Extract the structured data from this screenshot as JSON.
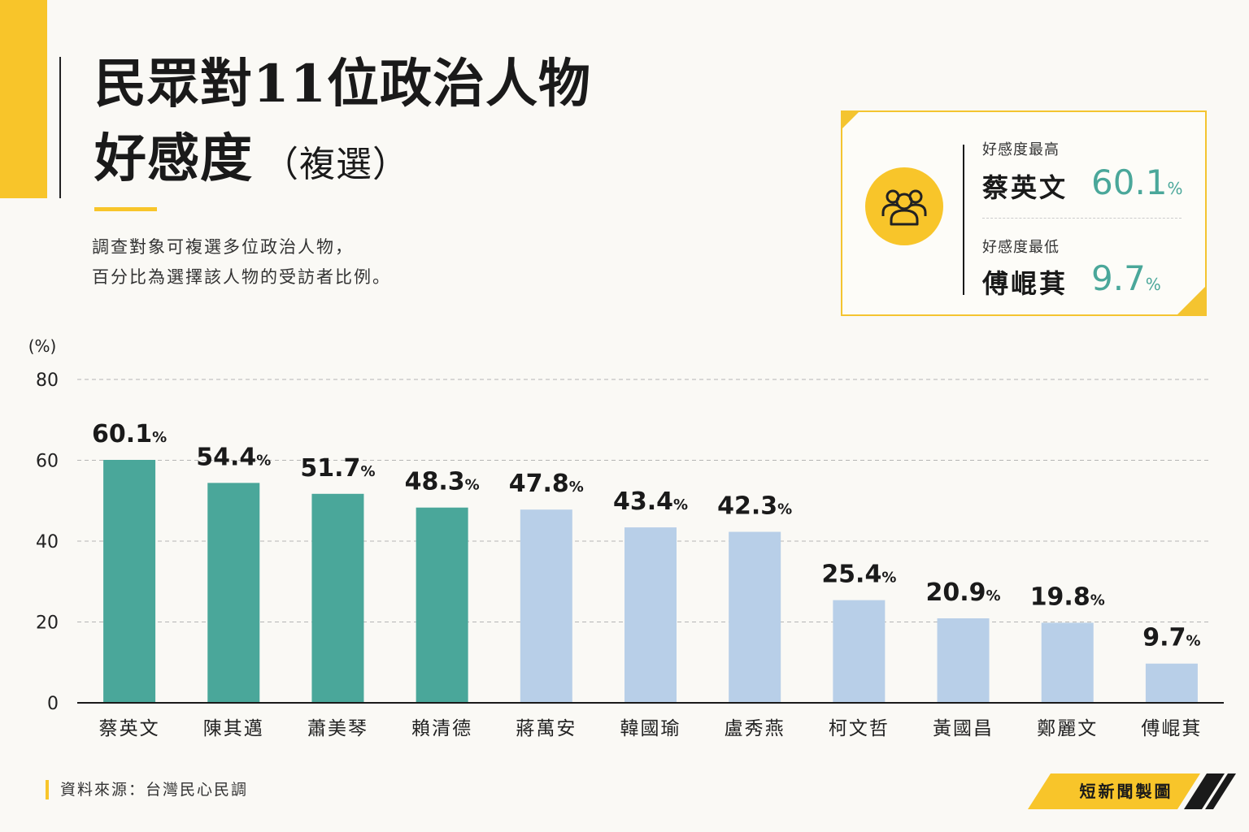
{
  "title_line1": "民眾對11位政治人物",
  "title_line2": "好感度",
  "title_paren": "（複選）",
  "note_line1": "調查對象可複選多位政治人物，",
  "note_line2": "百分比為選擇該人物的受訪者比例。",
  "callout": {
    "icon": "people-group-icon",
    "high_label": "好感度最高",
    "high_name": "蔡英文",
    "high_value": "60.1",
    "low_label": "好感度最低",
    "low_name": "傅崐萁",
    "low_value": "9.7",
    "unit": "%"
  },
  "colors": {
    "highlight_bar": "#4aa79a",
    "normal_bar": "#b8cfe8",
    "accent": "#f8c52a"
  },
  "chart_data": {
    "type": "bar",
    "categories": [
      "蔡英文",
      "陳其邁",
      "蕭美琴",
      "賴清德",
      "蔣萬安",
      "韓國瑜",
      "盧秀燕",
      "柯文哲",
      "黃國昌",
      "鄭麗文",
      "傅崐萁"
    ],
    "values": [
      60.1,
      54.4,
      51.7,
      48.3,
      47.8,
      43.4,
      42.3,
      25.4,
      20.9,
      19.8,
      9.7
    ],
    "value_labels": [
      "60.1",
      "54.4",
      "51.7",
      "48.3",
      "47.8",
      "43.4",
      "42.3",
      "25.4",
      "20.9",
      "19.8",
      "9.7"
    ],
    "value_suffix": "%",
    "highlighted": [
      true,
      true,
      true,
      true,
      false,
      false,
      false,
      false,
      false,
      false,
      false
    ],
    "yticks": [
      "0",
      "20",
      "40",
      "60",
      "80"
    ],
    "ylabel": "(%)",
    "ylim": [
      0,
      80
    ],
    "grid": true
  },
  "footer": {
    "source": "資料來源：台灣民心民調",
    "credit": "短新聞製圖"
  }
}
